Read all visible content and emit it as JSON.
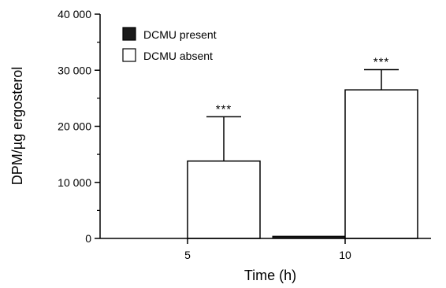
{
  "chart_data": {
    "type": "bar",
    "title": "",
    "xlabel": "Time (h)",
    "ylabel": "DPM/µg ergosterol",
    "categories": [
      "5",
      "10"
    ],
    "ylim": [
      0,
      40000
    ],
    "yticks": [
      0,
      10000,
      20000,
      30000,
      40000
    ],
    "ytick_labels": [
      "0",
      "10 000",
      "20 000",
      "30 000",
      "40 000"
    ],
    "grid": false,
    "legend_position": "top-left",
    "series": [
      {
        "name": "DCMU present",
        "color": "#1a1a1a",
        "fill": "solid",
        "values": [
          0,
          400
        ],
        "errors": [
          0,
          0
        ],
        "significance": [
          "",
          ""
        ]
      },
      {
        "name": "DCMU absent",
        "color": "#ffffff",
        "fill": "open",
        "values": [
          13800,
          26500
        ],
        "errors": [
          7900,
          3600
        ],
        "significance": [
          "***",
          "***"
        ]
      }
    ]
  }
}
